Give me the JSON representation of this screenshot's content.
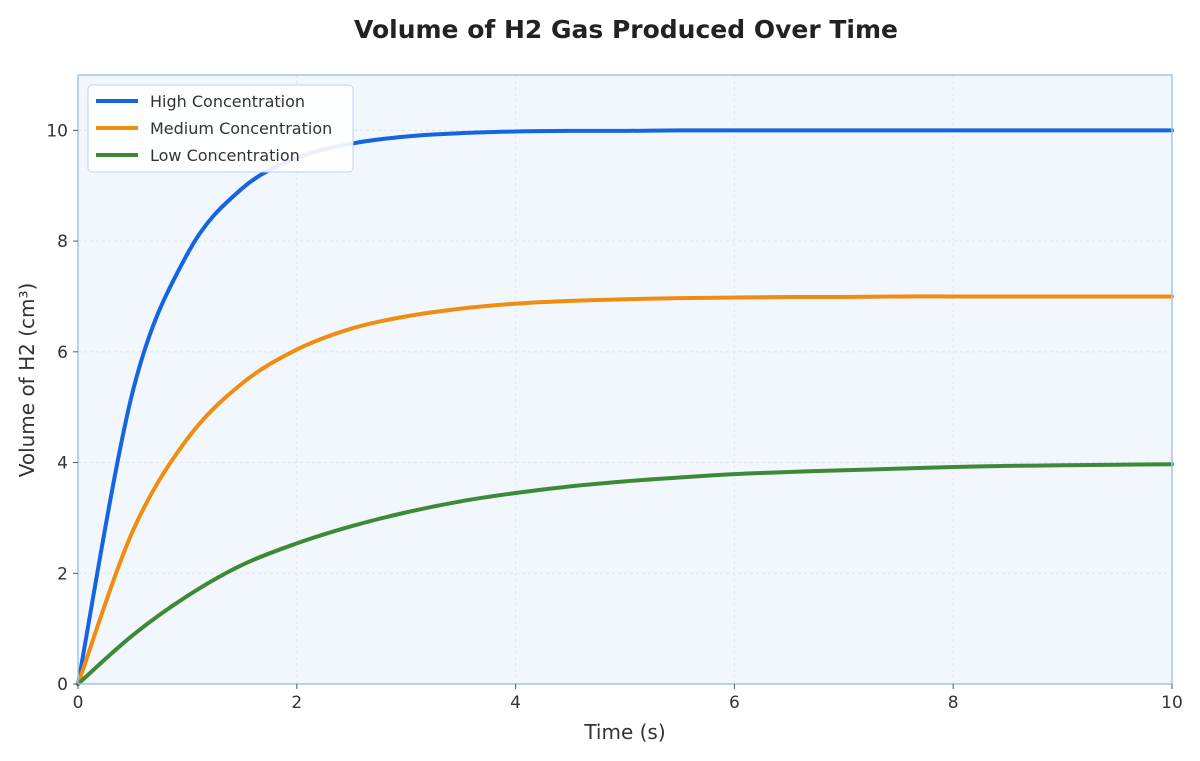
{
  "chart_data": {
    "type": "line",
    "title": "Volume of H2 Gas Produced Over Time",
    "xlabel": "Time (s)",
    "ylabel": "Volume of H2 (cm³)",
    "xlim": [
      0,
      10
    ],
    "ylim": [
      0,
      11
    ],
    "xticks": [
      0,
      2,
      4,
      6,
      8,
      10
    ],
    "yticks": [
      0,
      2,
      4,
      6,
      8,
      10
    ],
    "grid": true,
    "legend_position": "top-left",
    "x": [
      0,
      0.5,
      1,
      1.5,
      2,
      2.5,
      3,
      3.5,
      4,
      4.5,
      5,
      5.5,
      6,
      6.5,
      7,
      7.5,
      8,
      8.5,
      9,
      9.5,
      10
    ],
    "series": [
      {
        "name": "High Concentration",
        "color": "#1565e0",
        "values": [
          0,
          5.28,
          7.77,
          8.95,
          9.5,
          9.76,
          9.89,
          9.95,
          9.98,
          9.99,
          9.99,
          10.0,
          10.0,
          10.0,
          10.0,
          10.0,
          10.0,
          10.0,
          10.0,
          10.0,
          10.0
        ]
      },
      {
        "name": "Medium Concentration",
        "color": "#f28c0f",
        "values": [
          0,
          2.76,
          4.43,
          5.43,
          6.04,
          6.42,
          6.64,
          6.78,
          6.87,
          6.92,
          6.95,
          6.97,
          6.98,
          6.99,
          6.99,
          7.0,
          7.0,
          7.0,
          7.0,
          7.0,
          7.0
        ]
      },
      {
        "name": "Low Concentration",
        "color": "#3d8a35",
        "values": [
          0,
          0.88,
          1.59,
          2.15,
          2.54,
          2.85,
          3.1,
          3.3,
          3.45,
          3.57,
          3.66,
          3.73,
          3.79,
          3.83,
          3.86,
          3.89,
          3.92,
          3.94,
          3.95,
          3.96,
          3.97
        ]
      }
    ]
  },
  "colors": {
    "plot_background": "#f2f7fd",
    "plot_border": "#a5c3ee",
    "grid": "#dfe6f0"
  }
}
